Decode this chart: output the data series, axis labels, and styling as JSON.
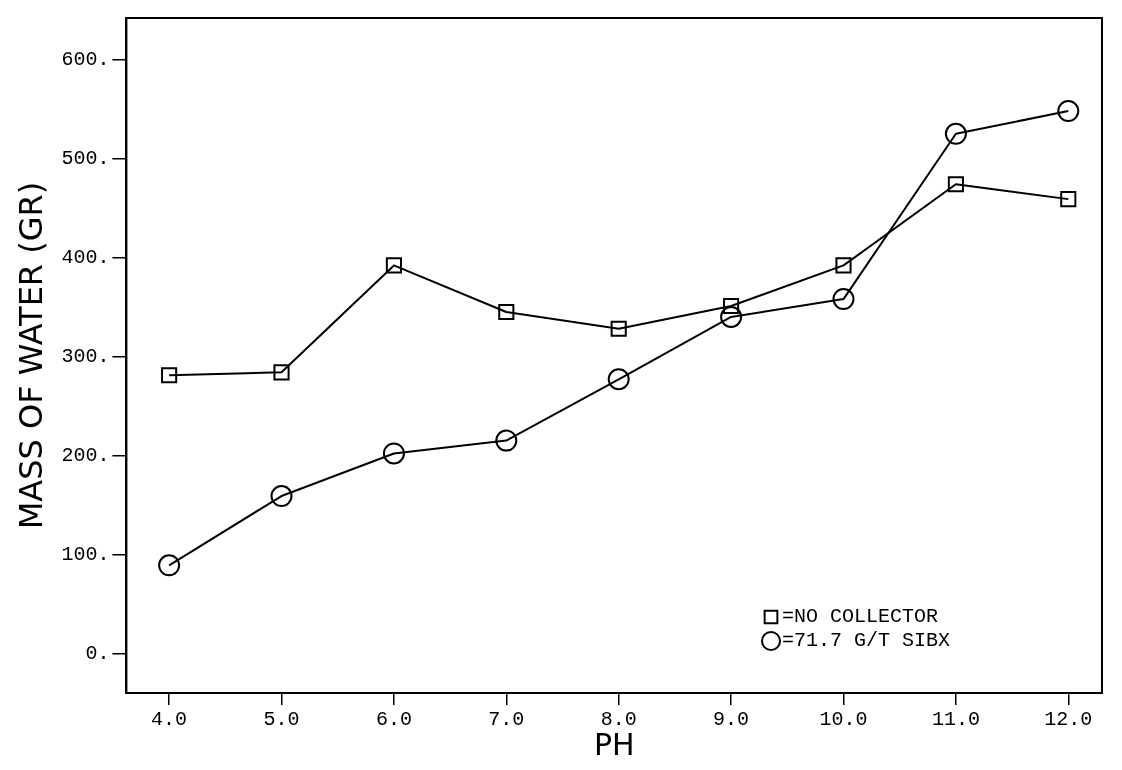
{
  "chart_data": {
    "type": "line",
    "xlabel": "PH",
    "ylabel": "MASS OF WATER (GR)",
    "x": [
      4,
      5,
      6,
      7,
      8,
      9,
      10,
      11,
      12
    ],
    "series": [
      {
        "name": "=NO COLLECTOR",
        "color": "#000000",
        "marker": "square",
        "values": [
          281,
          284,
          392,
          345,
          328,
          351,
          392,
          474,
          459
        ]
      },
      {
        "name": "=71.7 G/T SIBX",
        "color": "#000000",
        "marker": "circle",
        "values": [
          89,
          159,
          202,
          215,
          277,
          340,
          358,
          525,
          548
        ]
      }
    ],
    "xlim": [
      3.62,
      12.3
    ],
    "ylim": [
      -40,
      642
    ],
    "xticks": [
      {
        "value": 4,
        "label": "4.0"
      },
      {
        "value": 5,
        "label": "5.0"
      },
      {
        "value": 6,
        "label": "6.0"
      },
      {
        "value": 7,
        "label": "7.0"
      },
      {
        "value": 8,
        "label": "8.0"
      },
      {
        "value": 9,
        "label": "9.0"
      },
      {
        "value": 10,
        "label": "10.0"
      },
      {
        "value": 11,
        "label": "11.0"
      },
      {
        "value": 12,
        "label": "12.0"
      }
    ],
    "yticks": [
      {
        "value": 0,
        "label": "0."
      },
      {
        "value": 100,
        "label": "100."
      },
      {
        "value": 200,
        "label": "200."
      },
      {
        "value": 300,
        "label": "300."
      },
      {
        "value": 400,
        "label": "400."
      },
      {
        "value": 500,
        "label": "500."
      },
      {
        "value": 600,
        "label": "600."
      }
    ],
    "grid": false,
    "legend": "bottom right",
    "line_style": "solid"
  }
}
